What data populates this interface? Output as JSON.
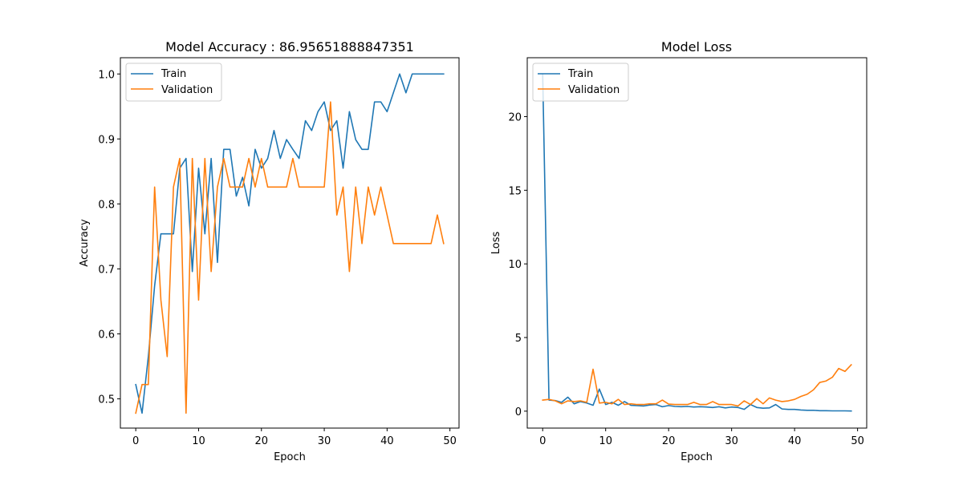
{
  "colors": {
    "train": "#1f77b4",
    "validation": "#ff7f0e"
  },
  "chart_data": [
    {
      "type": "line",
      "title": "Model Accuracy : 86.95651888847351",
      "xlabel": "Epoch",
      "ylabel": "Accuracy",
      "xlim": [
        -2.45,
        51.45
      ],
      "ylim": [
        0.455,
        1.025
      ],
      "xticks": [
        0,
        10,
        20,
        30,
        40,
        50
      ],
      "yticks": [
        0.5,
        0.6,
        0.7,
        0.8,
        0.9,
        1.0
      ],
      "ytick_labels": [
        "0.5",
        "0.6",
        "0.7",
        "0.8",
        "0.9",
        "1.0"
      ],
      "legend_loc": "upper left",
      "x": [
        0,
        1,
        2,
        3,
        4,
        5,
        6,
        7,
        8,
        9,
        10,
        11,
        12,
        13,
        14,
        15,
        16,
        17,
        18,
        19,
        20,
        21,
        22,
        23,
        24,
        25,
        26,
        27,
        28,
        29,
        30,
        31,
        32,
        33,
        34,
        35,
        36,
        37,
        38,
        39,
        40,
        41,
        42,
        43,
        44,
        45,
        46,
        47,
        48,
        49
      ],
      "series": [
        {
          "name": "Train",
          "color_key": "train",
          "values": [
            0.522,
            0.478,
            0.565,
            0.674,
            0.754,
            0.754,
            0.754,
            0.855,
            0.87,
            0.696,
            0.855,
            0.754,
            0.87,
            0.71,
            0.884,
            0.884,
            0.812,
            0.841,
            0.797,
            0.884,
            0.855,
            0.87,
            0.913,
            0.87,
            0.899,
            0.884,
            0.87,
            0.928,
            0.913,
            0.942,
            0.957,
            0.913,
            0.928,
            0.855,
            0.942,
            0.899,
            0.884,
            0.884,
            0.957,
            0.957,
            0.942,
            0.971,
            1.0,
            0.971,
            1.0,
            1.0,
            1.0,
            1.0,
            1.0,
            1.0
          ]
        },
        {
          "name": "Validation",
          "color_key": "validation",
          "values": [
            0.478,
            0.522,
            0.522,
            0.826,
            0.652,
            0.565,
            0.826,
            0.87,
            0.478,
            0.87,
            0.652,
            0.87,
            0.696,
            0.826,
            0.87,
            0.826,
            0.826,
            0.826,
            0.87,
            0.826,
            0.87,
            0.826,
            0.826,
            0.826,
            0.826,
            0.87,
            0.826,
            0.826,
            0.826,
            0.826,
            0.826,
            0.957,
            0.783,
            0.826,
            0.696,
            0.826,
            0.739,
            0.826,
            0.783,
            0.826,
            0.783,
            0.739,
            0.739,
            0.739,
            0.739,
            0.739,
            0.739,
            0.739,
            0.783,
            0.739
          ]
        }
      ]
    },
    {
      "type": "line",
      "title": "Model Loss",
      "xlabel": "Epoch",
      "ylabel": "Loss",
      "xlim": [
        -2.45,
        51.45
      ],
      "ylim": [
        -1.15,
        24.0
      ],
      "xticks": [
        0,
        10,
        20,
        30,
        40,
        50
      ],
      "yticks": [
        0,
        5,
        10,
        15,
        20
      ],
      "ytick_labels": [
        "0",
        "5",
        "10",
        "15",
        "20"
      ],
      "legend_loc": "upper left",
      "x": [
        0,
        1,
        2,
        3,
        4,
        5,
        6,
        7,
        8,
        9,
        10,
        11,
        12,
        13,
        14,
        15,
        16,
        17,
        18,
        19,
        20,
        21,
        22,
        23,
        24,
        25,
        26,
        27,
        28,
        29,
        30,
        31,
        32,
        33,
        34,
        35,
        36,
        37,
        38,
        39,
        40,
        41,
        42,
        43,
        44,
        45,
        46,
        47,
        48,
        49
      ],
      "series": [
        {
          "name": "Train",
          "color_key": "train",
          "values": [
            22.9,
            0.75,
            0.72,
            0.6,
            0.95,
            0.5,
            0.65,
            0.55,
            0.4,
            1.5,
            0.45,
            0.6,
            0.4,
            0.65,
            0.4,
            0.38,
            0.35,
            0.42,
            0.45,
            0.3,
            0.38,
            0.32,
            0.3,
            0.32,
            0.28,
            0.3,
            0.28,
            0.25,
            0.3,
            0.22,
            0.28,
            0.25,
            0.12,
            0.45,
            0.25,
            0.2,
            0.22,
            0.45,
            0.15,
            0.12,
            0.12,
            0.08,
            0.06,
            0.06,
            0.03,
            0.03,
            0.02,
            0.02,
            0.02,
            0.01
          ]
        },
        {
          "name": "Validation",
          "color_key": "validation",
          "values": [
            0.75,
            0.8,
            0.7,
            0.5,
            0.7,
            0.65,
            0.7,
            0.6,
            2.85,
            0.55,
            0.6,
            0.5,
            0.8,
            0.45,
            0.5,
            0.45,
            0.45,
            0.5,
            0.5,
            0.75,
            0.48,
            0.45,
            0.45,
            0.45,
            0.6,
            0.45,
            0.45,
            0.65,
            0.45,
            0.45,
            0.45,
            0.35,
            0.7,
            0.45,
            0.85,
            0.5,
            0.9,
            0.75,
            0.65,
            0.7,
            0.8,
            1.0,
            1.15,
            1.45,
            1.95,
            2.05,
            2.3,
            2.9,
            2.7,
            3.15
          ]
        }
      ]
    }
  ]
}
